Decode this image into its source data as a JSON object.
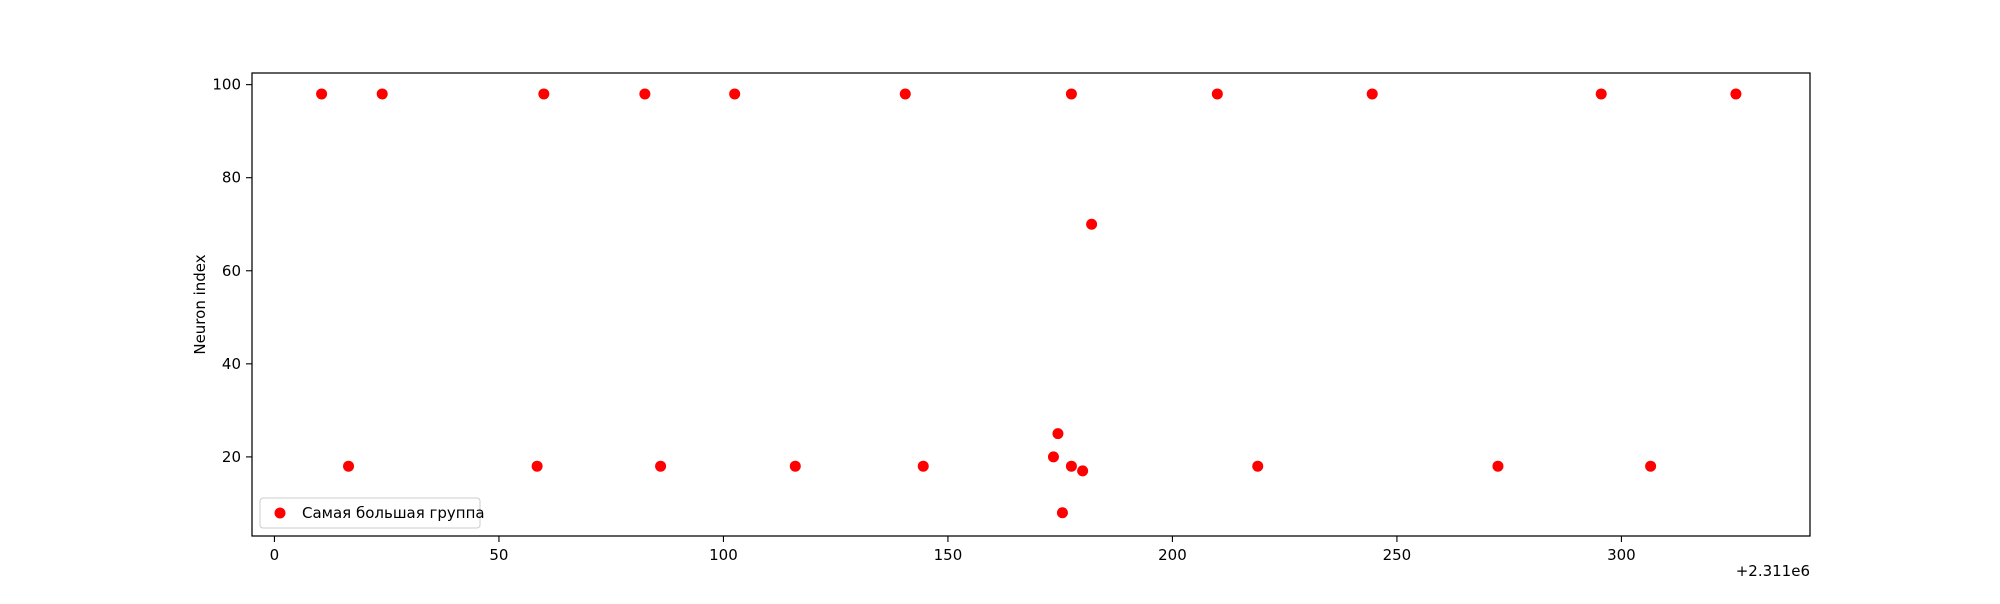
{
  "chart_data": {
    "type": "scatter",
    "title": "",
    "xlabel": "",
    "ylabel": "Neuron index",
    "x_offset_label": "+2.311e6",
    "xlim": [
      -5,
      342
    ],
    "ylim": [
      3,
      102.5
    ],
    "x_ticks": [
      0,
      50,
      100,
      150,
      200,
      250,
      300
    ],
    "y_ticks": [
      20,
      40,
      60,
      80,
      100
    ],
    "grid": false,
    "legend_position": "lower-left",
    "series": [
      {
        "name": "Самая большая группа",
        "color": "#ff0000",
        "x": [
          10.5,
          24,
          60,
          82.5,
          102.5,
          140.5,
          177.5,
          210,
          244.5,
          295.5,
          325.5,
          16.5,
          58.5,
          86,
          116,
          144.5,
          219,
          272.5,
          306.5,
          182,
          174.5,
          173.5,
          177.5,
          180,
          175.5
        ],
        "y": [
          98,
          98,
          98,
          98,
          98,
          98,
          98,
          98,
          98,
          98,
          98,
          18,
          18,
          18,
          18,
          18,
          18,
          18,
          18,
          70,
          25,
          20,
          18,
          17,
          8
        ]
      }
    ]
  }
}
